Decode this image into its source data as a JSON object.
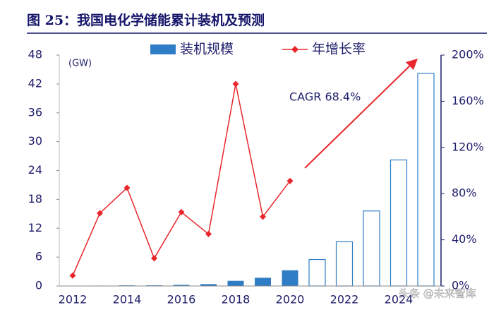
{
  "chart_data": {
    "type": "bar_line",
    "title": "图 25：我国电化学储能累计装机及预测",
    "y_label": "(GW)",
    "annotation": "CAGR 68.4%",
    "watermark": "头条 @未来智库",
    "categories": [
      "2012",
      null,
      "2014",
      null,
      "2016",
      null,
      "2018",
      null,
      "2020",
      null,
      "2022",
      null,
      "2024",
      null
    ],
    "series": [
      {
        "name": "装机规模",
        "type": "bar",
        "color": "#2e7dc6",
        "values": [
          0.05,
          0.08,
          0.13,
          0.14,
          0.24,
          0.39,
          1.07,
          1.71,
          3.27,
          5.5,
          9.2,
          15.6,
          26.2,
          44.2
        ],
        "bar_styles": [
          "solid",
          "solid",
          "solid",
          "solid",
          "solid",
          "solid",
          "solid",
          "solid",
          "solid",
          "hollow",
          "hollow",
          "hollow",
          "hollow",
          "hollow"
        ]
      },
      {
        "name": "年增长率",
        "type": "line",
        "axis": "y2",
        "color": "#e8262b",
        "values": [
          9,
          63,
          85,
          24,
          64,
          45,
          175,
          60,
          91,
          null,
          null,
          null,
          null,
          null
        ]
      }
    ],
    "ylim": [
      0,
      48
    ],
    "yticks": [
      0,
      6,
      12,
      18,
      24,
      30,
      36,
      42,
      48
    ],
    "y2lim": [
      0,
      200
    ],
    "y2ticks": [
      {
        "value": 0,
        "label": "0%"
      },
      {
        "value": 40,
        "label": "40%"
      },
      {
        "value": 80,
        "label": "80%"
      },
      {
        "value": 120,
        "label": "120%"
      },
      {
        "value": 160,
        "label": "160%"
      },
      {
        "value": 200,
        "label": "200%"
      }
    ]
  }
}
